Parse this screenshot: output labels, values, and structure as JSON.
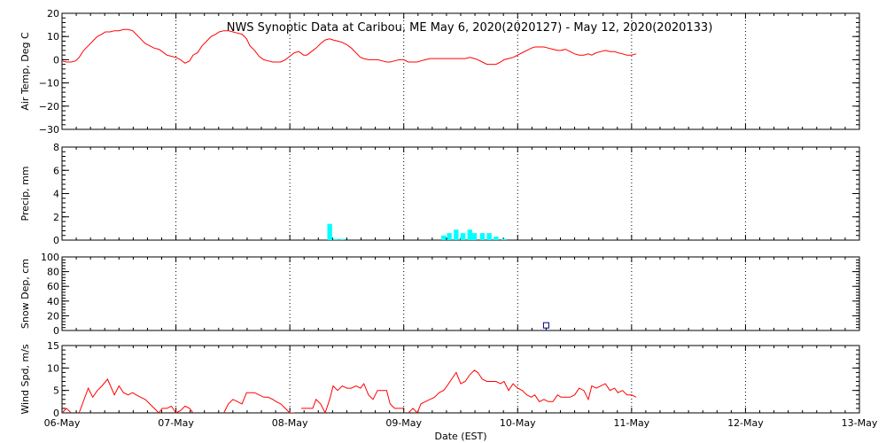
{
  "title": "NWS Synoptic Data at Caribou, ME   May  6, 2020(2020127) - May 12, 2020(2020133)",
  "xlabel": "Date (EST)",
  "x_ticks": [
    "06-May",
    "07-May",
    "08-May",
    "09-May",
    "10-May",
    "11-May",
    "12-May",
    "13-May"
  ],
  "colors": {
    "temp_line": "#ff0000",
    "precip_bar": "#00ffff",
    "snow_marker": "#00008b",
    "wind_line": "#ff0000",
    "axes": "#000000",
    "grid": "#000000"
  },
  "chart_data": [
    {
      "type": "line",
      "ylabel": "Air Temp, Deg C",
      "ylim": [
        -30,
        20
      ],
      "y_ticks": [
        "20",
        "10",
        "0",
        "−10",
        "−20",
        "−30"
      ],
      "y_tick_values": [
        20,
        10,
        0,
        -10,
        -20,
        -30
      ],
      "xlim": [
        0,
        7
      ],
      "grid": true,
      "series": [
        {
          "x": [
            0,
            0.04,
            0.08,
            0.12,
            0.15,
            0.19,
            0.23,
            0.27,
            0.31,
            0.35,
            0.38,
            0.42,
            0.46,
            0.5,
            0.54,
            0.58,
            0.62,
            0.65,
            0.69,
            0.73,
            0.77,
            0.81,
            0.85,
            0.88,
            0.92,
            0.96,
            1,
            1.04,
            1.08,
            1.12,
            1.15,
            1.19,
            1.23,
            1.27,
            1.31,
            1.35,
            1.38,
            1.42,
            1.46,
            1.5,
            1.54,
            1.58,
            1.62,
            1.65,
            1.69,
            1.73,
            1.77,
            1.81,
            1.85,
            1.88,
            1.92,
            1.96,
            2,
            2.04,
            2.08,
            2.12,
            2.15,
            2.19,
            2.23,
            2.27,
            2.31,
            2.35,
            2.38,
            2.42,
            2.46,
            2.5,
            2.54,
            2.58,
            2.62,
            2.65,
            2.69,
            2.73,
            2.77,
            2.81,
            2.85,
            2.88,
            2.92,
            2.96,
            3,
            3.04,
            3.08,
            3.12,
            3.15,
            3.19,
            3.23,
            3.27,
            3.31,
            3.35,
            3.38,
            3.42,
            3.46,
            3.5,
            3.54,
            3.58,
            3.62,
            3.65,
            3.69,
            3.73,
            3.77,
            3.81,
            3.85,
            3.88,
            3.92,
            3.96,
            4,
            4.04,
            4.08,
            4.12,
            4.15,
            4.19,
            4.23,
            4.27,
            4.31,
            4.35,
            4.38,
            4.42,
            4.46,
            4.5,
            4.54,
            4.58,
            4.62,
            4.65,
            4.69,
            4.73,
            4.77,
            4.81,
            4.85,
            4.88,
            4.92,
            4.96,
            5,
            5.04
          ],
          "y": [
            -0.5,
            -1,
            -1,
            -0.5,
            1,
            4,
            6,
            8,
            10,
            11,
            12,
            12,
            12.5,
            12.5,
            13,
            13,
            12.5,
            11,
            9,
            7,
            6,
            5,
            4.5,
            3.5,
            2,
            1.5,
            1,
            0,
            -1.5,
            -0.5,
            2,
            3,
            6,
            8,
            10,
            11,
            12,
            12.5,
            12.5,
            12,
            11.5,
            11,
            9,
            6,
            4,
            1.5,
            0,
            -0.5,
            -1,
            -1,
            -1,
            0,
            1.5,
            3,
            3.5,
            2,
            2,
            3.5,
            5,
            7,
            8.5,
            9,
            8.5,
            8,
            7.5,
            6.5,
            5,
            3,
            1,
            0.5,
            0,
            0,
            0,
            -0.5,
            -1,
            -1,
            -0.5,
            0,
            0,
            -1,
            -1,
            -1,
            -0.5,
            0,
            0.5,
            0.5,
            0.5,
            0.5,
            0.5,
            0.5,
            0.5,
            0.5,
            0.5,
            1,
            0.5,
            0,
            -1,
            -2,
            -2,
            -2,
            -1,
            0,
            0.5,
            1,
            2,
            3,
            4,
            5,
            5.5,
            5.5,
            5.5,
            5,
            4.5,
            4,
            4,
            4.5,
            3.5,
            2.5,
            2,
            2,
            2.5,
            2,
            3,
            3.5,
            4,
            3.5,
            3.5,
            3,
            2.5,
            2,
            2,
            2.5
          ]
        }
      ]
    },
    {
      "type": "bar",
      "ylabel": "Precip, mm",
      "ylim": [
        0,
        8
      ],
      "y_ticks": [
        "8",
        "6",
        "4",
        "2",
        "0"
      ],
      "y_tick_values": [
        8,
        6,
        4,
        2,
        0
      ],
      "xlim": [
        0,
        7
      ],
      "grid": true,
      "series": [
        {
          "x": [
            2.35,
            2.4,
            2.46,
            3.35,
            3.4,
            3.46,
            3.52,
            3.58,
            3.62,
            3.69,
            3.75,
            3.81,
            3.88
          ],
          "y": [
            1.4,
            0.1,
            0.1,
            0.4,
            0.6,
            0.9,
            0.6,
            0.9,
            0.6,
            0.6,
            0.6,
            0.3,
            0.1
          ]
        }
      ]
    },
    {
      "type": "scatter",
      "ylabel": "Snow Dep, cm",
      "ylim": [
        0,
        100
      ],
      "y_ticks": [
        "100",
        "80",
        "60",
        "40",
        "20",
        "0"
      ],
      "y_tick_values": [
        100,
        80,
        60,
        40,
        20,
        0
      ],
      "xlim": [
        0,
        7
      ],
      "grid": true,
      "series": [
        {
          "x": [
            4.25
          ],
          "y": [
            7
          ]
        }
      ]
    },
    {
      "type": "line",
      "ylabel": "Wind Spd, m/s",
      "ylim": [
        0,
        15
      ],
      "y_ticks": [
        "15",
        "10",
        "5",
        "0"
      ],
      "y_tick_values": [
        15,
        10,
        5,
        0
      ],
      "xlim": [
        0,
        7
      ],
      "grid": true,
      "series": [
        {
          "x": [
            0,
            0.04,
            0.08
          ],
          "y": [
            0,
            1,
            0
          ]
        },
        {
          "x": [
            0.15,
            0.23,
            0.27,
            0.31,
            0.35,
            0.4,
            0.46,
            0.5,
            0.54,
            0.58,
            0.62,
            0.65,
            0.69,
            0.73,
            0.77,
            0.81,
            0.85,
            0.88,
            0.92,
            0.96,
            1,
            1.04,
            1.08,
            1.12,
            1.15
          ],
          "y": [
            0,
            5.5,
            3.5,
            5,
            6,
            7.5,
            4,
            6,
            4.5,
            4,
            4.5,
            4,
            3.5,
            3,
            2,
            1,
            0,
            1,
            1,
            1.5,
            0,
            0.5,
            1.5,
            1,
            0
          ]
        },
        {
          "x": [
            1.42,
            1.46,
            1.5,
            1.54,
            1.58,
            1.62,
            1.65,
            1.69,
            1.73,
            1.77,
            1.81,
            1.85,
            1.88,
            1.92,
            1.96,
            2,
            2.04
          ],
          "y": [
            0,
            2,
            3,
            2.5,
            2,
            4.5,
            4.5,
            4.5,
            4,
            3.5,
            3.5,
            3,
            2.5,
            2,
            1,
            0,
            0
          ]
        },
        {
          "x": [
            2.1,
            2.15,
            2.2,
            2.23,
            2.27,
            2.31,
            2.35,
            2.38,
            2.42,
            2.46,
            2.5,
            2.54,
            2.58,
            2.62,
            2.65,
            2.69,
            2.73,
            2.77,
            2.81,
            2.85,
            2.88,
            2.92,
            2.96,
            3
          ],
          "y": [
            1,
            1,
            1,
            3,
            2,
            0,
            3,
            6,
            5,
            6,
            5.5,
            5.5,
            6,
            5.5,
            6.5,
            4,
            3,
            5,
            5,
            5,
            2,
            1,
            1,
            1
          ]
        },
        {
          "x": [
            3.04,
            3.08,
            3.12,
            3.15,
            3.19,
            3.23,
            3.27,
            3.31,
            3.35,
            3.38,
            3.42,
            3.46,
            3.5,
            3.54,
            3.58,
            3.62,
            3.65,
            3.69,
            3.73,
            3.77,
            3.81,
            3.85,
            3.88,
            3.92,
            3.96,
            4,
            4.04,
            4.08,
            4.12,
            4.15,
            4.19,
            4.23,
            4.27,
            4.31,
            4.35,
            4.38,
            4.42,
            4.46,
            4.5,
            4.54,
            4.58,
            4.62,
            4.65,
            4.69,
            4.73,
            4.77,
            4.81,
            4.85,
            4.88,
            4.92,
            4.96,
            5,
            5.04
          ],
          "y": [
            0,
            1,
            0,
            2,
            2.5,
            3,
            3.5,
            4.5,
            5,
            6,
            7.5,
            9,
            6.5,
            7,
            8.5,
            9.5,
            9,
            7.5,
            7,
            7,
            7,
            6.5,
            7,
            5,
            6.5,
            5.5,
            5,
            4,
            3.5,
            4,
            2.5,
            3,
            2.5,
            2.5,
            4,
            3.5,
            3.5,
            3.5,
            4,
            5.5,
            5,
            3,
            6,
            5.5,
            6,
            6.5,
            5,
            5.5,
            4.5,
            5,
            4,
            4,
            3.5
          ]
        }
      ]
    }
  ]
}
